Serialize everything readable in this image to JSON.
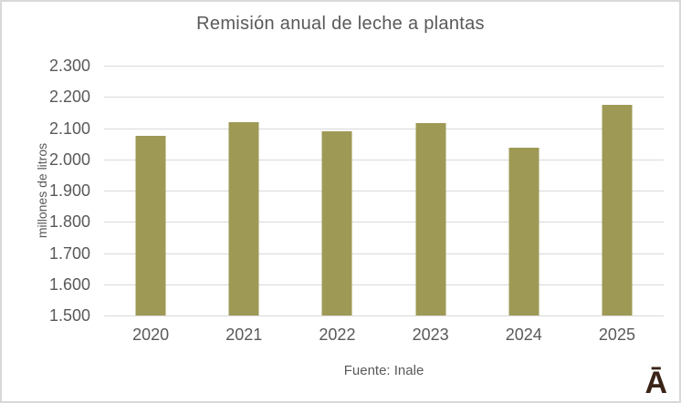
{
  "chart_data": {
    "type": "bar",
    "title": "Remisión anual de leche a plantas",
    "xlabel": "",
    "ylabel": "millones de litros",
    "categories": [
      "2020",
      "2021",
      "2022",
      "2023",
      "2024",
      "2025"
    ],
    "values": [
      2076,
      2119,
      2089,
      2116,
      2038,
      2174
    ],
    "ylim": [
      1500,
      2300
    ],
    "y_ticks": [
      {
        "label": "2.300",
        "value": 2300
      },
      {
        "label": "2.200",
        "value": 2200
      },
      {
        "label": "2.100",
        "value": 2100
      },
      {
        "label": "2.000",
        "value": 2000
      },
      {
        "label": "1.900",
        "value": 1900
      },
      {
        "label": "1.800",
        "value": 1800
      },
      {
        "label": "1.700",
        "value": 1700
      },
      {
        "label": "1.600",
        "value": 1600
      },
      {
        "label": "1.500",
        "value": 1500
      }
    ],
    "grid": true,
    "legend_position": "none",
    "bar_color": "#9e9955",
    "gridline_color": "#d9d9d9",
    "text_color": "#595959"
  },
  "source": {
    "label": "Fuente: Inale"
  },
  "logo": {
    "glyph": "Ā",
    "color": "#3a2316"
  }
}
